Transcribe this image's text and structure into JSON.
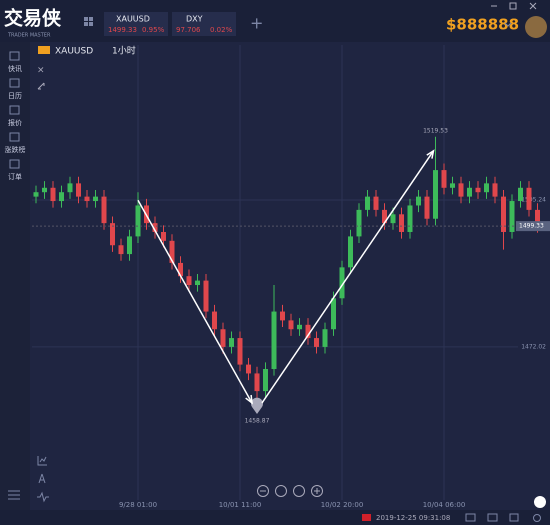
{
  "app": {
    "logo": "交易侠",
    "logo_sub": "TRADER MASTER",
    "tabs": [
      {
        "symbol": "XAUUSD",
        "price": "1499.33",
        "change": "0.95%"
      },
      {
        "symbol": "DXY",
        "price": "97.706",
        "change": "0.02%"
      }
    ],
    "balance": "$888888",
    "symbol": "XAUUSD",
    "timeframe": "1小时",
    "sidebar": [
      "快讯",
      "日历",
      "报价",
      "涨跌榜",
      "订单"
    ],
    "status_time": "2019-12-25 09:31:08"
  },
  "chart_data": {
    "type": "candlestick",
    "up_color": "#3dbb5a",
    "down_color": "#e0474c",
    "grid": true,
    "x": [
      null,
      null,
      null,
      null,
      null,
      null,
      null,
      null,
      null,
      null,
      null,
      null,
      "9/28 01:00",
      null,
      null,
      null,
      null,
      null,
      null,
      null,
      null,
      null,
      null,
      null,
      "10/01 11:00",
      null,
      null,
      null,
      null,
      null,
      null,
      null,
      null,
      null,
      null,
      null,
      "10/02 20:00",
      null,
      null,
      null,
      null,
      null,
      null,
      null,
      null,
      null,
      null,
      null,
      "10/04 06:00",
      null,
      null,
      null,
      null,
      null,
      null,
      null,
      null,
      null,
      null,
      null
    ],
    "open": [
      1506,
      1507,
      1508,
      1505,
      1507,
      1509,
      1506,
      1505,
      1506,
      1500,
      1495,
      1493,
      1497,
      1504,
      1500,
      1498,
      1496,
      1491,
      1488,
      1486,
      1487,
      1480,
      1476,
      1472,
      1474,
      1468,
      1466,
      1462,
      1467,
      1480,
      1478,
      1476,
      1477,
      1474,
      1472,
      1476,
      1483,
      1490,
      1497,
      1503,
      1506,
      1503,
      1500,
      1502,
      1498,
      1504,
      1506,
      1501,
      1512,
      1508,
      1509,
      1506,
      1508,
      1507,
      1509,
      1506,
      1498,
      1505,
      1508,
      1503
    ],
    "high": [
      1508.5,
      1509.5,
      1509.5,
      1508.5,
      1510.5,
      1510.5,
      1507.5,
      1507.5,
      1507.5,
      1501.5,
      1496.5,
      1498.5,
      1507,
      1505.5,
      1501.5,
      1499.5,
      1497.5,
      1492.5,
      1489.5,
      1488.5,
      1488.5,
      1481.5,
      1477.5,
      1475.5,
      1475.5,
      1469.5,
      1467.5,
      1468.5,
      1486,
      1481.5,
      1479.5,
      1478.5,
      1478.5,
      1475.5,
      1477.5,
      1484.5,
      1491.5,
      1498.5,
      1504.5,
      1507.5,
      1507.5,
      1504.5,
      1503.5,
      1503.5,
      1505.5,
      1507.5,
      1507.5,
      1519.53,
      1513.5,
      1510.5,
      1510.5,
      1509.5,
      1509.5,
      1510.5,
      1510.5,
      1507.5,
      1506.5,
      1509.5,
      1509.5,
      1504.5
    ],
    "low": [
      1504.5,
      1505.5,
      1503.5,
      1503.5,
      1505.5,
      1504.5,
      1503.5,
      1503.5,
      1498.5,
      1493.5,
      1491.5,
      1491.5,
      1495.5,
      1498.5,
      1496.5,
      1494.5,
      1489.5,
      1486.5,
      1484.5,
      1484.5,
      1478.5,
      1474.5,
      1470.5,
      1470.5,
      1466.5,
      1464.5,
      1458.87,
      1460.5,
      1465.5,
      1476.5,
      1474.5,
      1474.5,
      1472.5,
      1470.5,
      1470.5,
      1474.5,
      1481.5,
      1488.5,
      1495.5,
      1501.5,
      1501.5,
      1498.5,
      1498.5,
      1496.5,
      1496.5,
      1502.5,
      1499.5,
      1499.5,
      1506.5,
      1506.5,
      1504.5,
      1504.5,
      1505.5,
      1505.5,
      1504.5,
      1494,
      1496.5,
      1503.5,
      1501.5,
      1497.83
    ],
    "close": [
      1507,
      1508,
      1505,
      1507,
      1509,
      1506,
      1505,
      1506,
      1500,
      1495,
      1493,
      1497,
      1504,
      1500,
      1498,
      1496,
      1491,
      1488,
      1486,
      1487,
      1480,
      1476,
      1472,
      1474,
      1468,
      1466,
      1462,
      1467,
      1480,
      1478,
      1476,
      1477,
      1474,
      1472,
      1476,
      1483,
      1490,
      1497,
      1503,
      1506,
      1503,
      1500,
      1502,
      1498,
      1504,
      1506,
      1501,
      1512,
      1508,
      1509,
      1506,
      1508,
      1507,
      1509,
      1506,
      1498,
      1505,
      1508,
      1503,
      1499.33
    ],
    "ylim": [
      1438.5,
      1540.3
    ],
    "yticks": [
      1505.24,
      1472.02
    ]
  }
}
